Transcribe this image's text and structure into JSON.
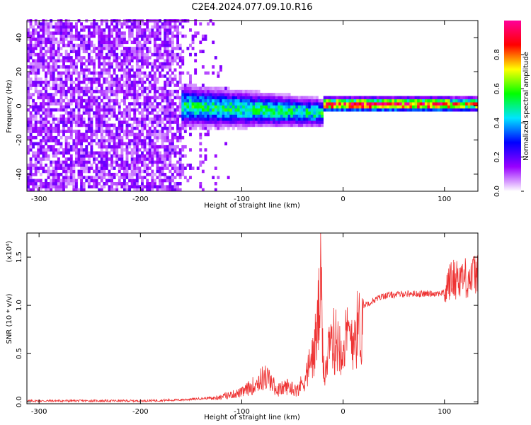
{
  "title": "C2E4.2024.077.09.10.R16",
  "chart_data": [
    {
      "type": "heatmap",
      "xlabel": "Height of straight line (km)",
      "ylabel": "Frequency (Hz)",
      "xlim": [
        -312,
        133
      ],
      "ylim": [
        -50,
        50
      ],
      "x_ticks": [
        -300,
        -200,
        -100,
        0,
        100
      ],
      "y_ticks": [
        -40,
        -20,
        0,
        20,
        40
      ],
      "colorbar": {
        "label": "Normalized spectral amplitude",
        "range": [
          0.0,
          1.0
        ],
        "ticks": [
          0.0,
          0.2,
          0.4,
          0.6,
          0.8
        ],
        "colors": [
          "#ffffff",
          "#9900ff",
          "#0000ff",
          "#00e5ff",
          "#00ff00",
          "#ffff00",
          "#ff0000",
          "#ff0099"
        ]
      },
      "regions": [
        {
          "x_range": [
            -312,
            -160
          ],
          "f_range": [
            -50,
            50
          ],
          "description": "noise",
          "amplitude": 0.15
        },
        {
          "x_range": [
            -160,
            -20
          ],
          "center_f": [
            -1,
            -5
          ],
          "amplitude": 0.5
        },
        {
          "x_range": [
            -20,
            105
          ],
          "center_f": [
            0,
            0
          ],
          "amplitude": 0.9
        },
        {
          "x_range": [
            105,
            133
          ],
          "center_f": [
            0,
            0
          ],
          "amplitude": 0.75
        }
      ]
    },
    {
      "type": "line",
      "xlabel": "Height of straight line (km)",
      "ylabel": "SNR (10 * v/v)",
      "y_multiplier": "(x10⁴)",
      "xlim": [
        -312,
        133
      ],
      "ylim": [
        -0.02,
        1.75
      ],
      "x_ticks": [
        -300,
        -200,
        -100,
        0,
        100
      ],
      "y_ticks": [
        0.0,
        0.5,
        1.0,
        1.5
      ],
      "color": "#ee3333",
      "series": [
        {
          "x": [
            -312,
            -250,
            -200,
            -160,
            -130,
            -115,
            -100,
            -90,
            -80,
            -75,
            -65,
            -55,
            -45,
            -38,
            -32,
            -28,
            -25,
            -22,
            -20,
            -18,
            -15,
            -12,
            -8,
            0,
            10,
            20,
            30,
            40,
            60,
            80,
            100,
            105,
            115,
            125,
            133
          ],
          "y": [
            0.01,
            0.01,
            0.01,
            0.02,
            0.04,
            0.08,
            0.12,
            0.2,
            0.3,
            0.32,
            0.15,
            0.2,
            0.15,
            0.3,
            0.5,
            0.7,
            1.0,
            1.5,
            0.6,
            0.4,
            0.55,
            0.75,
            0.8,
            0.75,
            0.9,
            1.0,
            1.05,
            1.1,
            1.12,
            1.12,
            1.13,
            1.25,
            1.3,
            1.28,
            1.35
          ]
        }
      ]
    }
  ]
}
